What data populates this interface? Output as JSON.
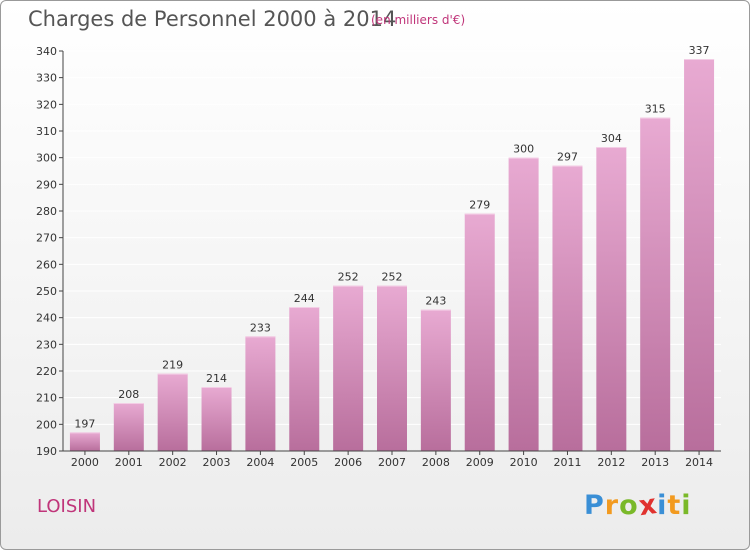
{
  "header": {
    "title": "Charges de Personnel 2000 à 2014",
    "subtitle": "(en milliers d'€)"
  },
  "footer": {
    "commune": "LOISIN",
    "logo_text": "Proxiti",
    "logo_letters": [
      {
        "char": "P",
        "color": "#3a8fd6"
      },
      {
        "char": "r",
        "color": "#f29a1f"
      },
      {
        "char": "o",
        "color": "#7ab929"
      },
      {
        "char": "x",
        "color": "#e0322f"
      },
      {
        "char": "i",
        "color": "#3a8fd6"
      },
      {
        "char": "t",
        "color": "#f29a1f"
      },
      {
        "char": "i",
        "color": "#7ab929"
      }
    ]
  },
  "colors": {
    "bar_light": "#e8aad2",
    "bar_dark": "#b86e9c",
    "axis": "#444444",
    "grid": "#ffffff",
    "accent": "#c0357a"
  },
  "chart_data": {
    "type": "bar",
    "title": "Charges de Personnel 2000 à 2014",
    "subtitle": "(en milliers d'€)",
    "xlabel": "",
    "ylabel": "",
    "categories": [
      "2000",
      "2001",
      "2002",
      "2003",
      "2004",
      "2005",
      "2006",
      "2007",
      "2008",
      "2009",
      "2010",
      "2011",
      "2012",
      "2013",
      "2014"
    ],
    "values": [
      197,
      208,
      219,
      214,
      233,
      244,
      252,
      252,
      243,
      279,
      300,
      297,
      304,
      315,
      337
    ],
    "ylim": [
      190,
      340
    ],
    "yticks": [
      190,
      200,
      210,
      220,
      230,
      240,
      250,
      260,
      270,
      280,
      290,
      300,
      310,
      320,
      330,
      340
    ],
    "grid": true,
    "data_labels": true
  }
}
